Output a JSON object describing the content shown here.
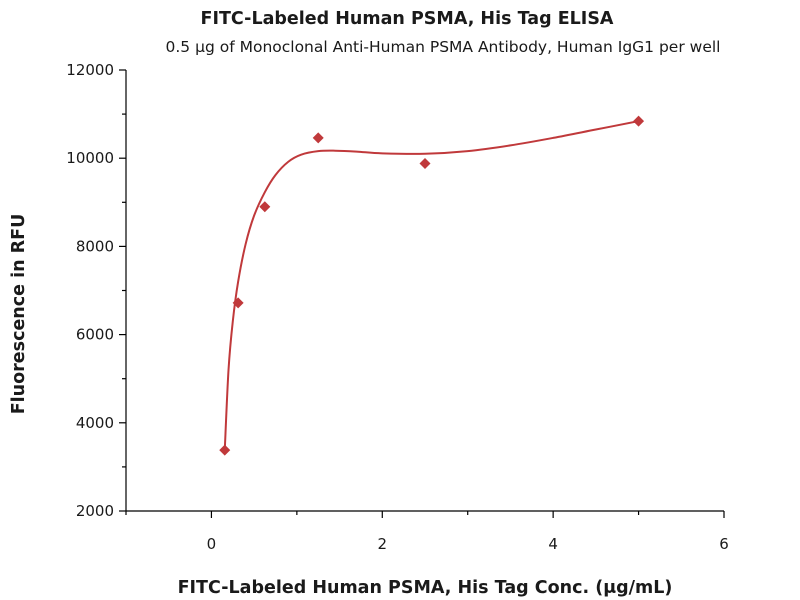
{
  "chart_data": {
    "type": "scatter",
    "title": "FITC-Labeled Human PSMA, His Tag ELISA",
    "subtitle": "0.5 μg of Monoclonal Anti-Human PSMA Antibody, Human IgG1 per well",
    "xlabel": "FITC-Labeled Human PSMA, His Tag Conc. (μg/mL)",
    "ylabel": "Fluorescence in RFU",
    "xlim": [
      -1,
      6
    ],
    "ylim": [
      2000,
      12000
    ],
    "x_ticks": [
      0,
      2,
      4,
      6
    ],
    "x_tick_labels": [
      "0",
      "2",
      "4",
      "6"
    ],
    "y_ticks": [
      2000,
      4000,
      6000,
      8000,
      10000,
      12000
    ],
    "y_tick_labels": [
      "2000",
      "4000",
      "6000",
      "8000",
      "10000",
      "12000"
    ],
    "grid": false,
    "series": [
      {
        "marker": "diamond",
        "color": "#c0393b",
        "x": [
          0.156,
          0.3125,
          0.625,
          1.25,
          2.5,
          5.0
        ],
        "y": [
          3380,
          6720,
          8900,
          10460,
          9880,
          10840
        ]
      }
    ],
    "fit_curve": {
      "color": "#c0393b",
      "x": [
        0.156,
        0.2,
        0.25,
        0.3125,
        0.4,
        0.5,
        0.625,
        0.75,
        0.9,
        1.05,
        1.25,
        1.45,
        1.7,
        2.0,
        2.5,
        3.0,
        3.5,
        4.0,
        4.5,
        5.0
      ],
      "y": [
        3380,
        5200,
        6300,
        7200,
        8050,
        8700,
        9230,
        9620,
        9920,
        10080,
        10160,
        10170,
        10150,
        10110,
        10100,
        10160,
        10290,
        10460,
        10650,
        10840
      ]
    }
  }
}
